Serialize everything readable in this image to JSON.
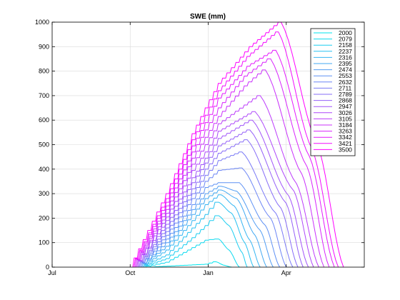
{
  "chart_data": {
    "type": "line",
    "title": "SWE (mm)",
    "xlabel": "",
    "ylabel": "",
    "x_ticks": [
      "Jul",
      "Oct",
      "Jan",
      "Apr"
    ],
    "x_tick_months": [
      0,
      3,
      6,
      9
    ],
    "xlim_months": [
      0,
      12
    ],
    "ylim": [
      0,
      1000
    ],
    "y_ticks": [
      0,
      100,
      200,
      300,
      400,
      500,
      600,
      700,
      800,
      900,
      1000
    ],
    "grid": true,
    "legend_position": "top-right",
    "color_start": "#00e5ee",
    "color_end": "#ff00ff",
    "series": [
      {
        "name": "2000",
        "values": [
          [
            3.75,
            0
          ],
          [
            6.0,
            12
          ],
          [
            6.3,
            22
          ],
          [
            6.6,
            8
          ],
          [
            6.9,
            0
          ]
        ]
      },
      {
        "name": "2079",
        "values": [
          [
            3.6,
            0
          ],
          [
            4.5,
            20
          ],
          [
            5.5,
            80
          ],
          [
            6.0,
            110
          ],
          [
            6.4,
            115
          ],
          [
            6.8,
            70
          ],
          [
            7.2,
            0
          ]
        ]
      },
      {
        "name": "2158",
        "values": [
          [
            3.55,
            0
          ],
          [
            4.5,
            35
          ],
          [
            5.5,
            120
          ],
          [
            6.0,
            170
          ],
          [
            6.4,
            210
          ],
          [
            6.8,
            170
          ],
          [
            7.3,
            60
          ],
          [
            7.5,
            0
          ]
        ]
      },
      {
        "name": "2237",
        "values": [
          [
            3.5,
            0
          ],
          [
            4.5,
            50
          ],
          [
            5.5,
            160
          ],
          [
            6.0,
            215
          ],
          [
            6.4,
            265
          ],
          [
            6.9,
            220
          ],
          [
            7.4,
            100
          ],
          [
            7.75,
            0
          ]
        ]
      },
      {
        "name": "2316",
        "values": [
          [
            3.5,
            0
          ],
          [
            4.5,
            70
          ],
          [
            5.5,
            190
          ],
          [
            6.0,
            255
          ],
          [
            6.5,
            295
          ],
          [
            7.0,
            250
          ],
          [
            7.6,
            110
          ],
          [
            8.0,
            0
          ]
        ]
      },
      {
        "name": "2395",
        "values": [
          [
            3.45,
            0
          ],
          [
            4.5,
            85
          ],
          [
            5.5,
            215
          ],
          [
            6.0,
            280
          ],
          [
            6.5,
            315
          ],
          [
            7.1,
            280
          ],
          [
            7.8,
            130
          ],
          [
            8.25,
            0
          ]
        ]
      },
      {
        "name": "2474",
        "values": [
          [
            3.45,
            0
          ],
          [
            4.5,
            100
          ],
          [
            5.5,
            235
          ],
          [
            6.0,
            300
          ],
          [
            6.5,
            330
          ],
          [
            7.1,
            310
          ],
          [
            8.0,
            150
          ],
          [
            8.5,
            0
          ]
        ]
      },
      {
        "name": "2553",
        "values": [
          [
            3.4,
            0
          ],
          [
            4.5,
            115
          ],
          [
            5.5,
            255
          ],
          [
            6.0,
            325
          ],
          [
            6.5,
            345
          ],
          [
            7.2,
            345
          ],
          [
            8.2,
            170
          ],
          [
            8.75,
            0
          ]
        ]
      },
      {
        "name": "2632",
        "values": [
          [
            3.4,
            0
          ],
          [
            4.5,
            130
          ],
          [
            5.5,
            280
          ],
          [
            6.0,
            350
          ],
          [
            6.5,
            395
          ],
          [
            7.3,
            405
          ],
          [
            8.4,
            200
          ],
          [
            9.0,
            0
          ]
        ]
      },
      {
        "name": "2711",
        "values": [
          [
            3.35,
            0
          ],
          [
            4.5,
            145
          ],
          [
            5.5,
            300
          ],
          [
            6.0,
            375
          ],
          [
            6.5,
            435
          ],
          [
            7.3,
            470
          ],
          [
            8.6,
            220
          ],
          [
            9.25,
            0
          ]
        ]
      },
      {
        "name": "2789",
        "values": [
          [
            3.35,
            0
          ],
          [
            4.5,
            160
          ],
          [
            5.5,
            320
          ],
          [
            6.0,
            400
          ],
          [
            6.5,
            465
          ],
          [
            7.5,
            520
          ],
          [
            8.8,
            240
          ],
          [
            9.45,
            0
          ]
        ]
      },
      {
        "name": "2868",
        "values": [
          [
            3.3,
            0
          ],
          [
            4.5,
            175
          ],
          [
            5.5,
            345
          ],
          [
            6.0,
            425
          ],
          [
            6.5,
            495
          ],
          [
            7.6,
            560
          ],
          [
            9.0,
            260
          ],
          [
            9.65,
            0
          ]
        ]
      },
      {
        "name": "2947",
        "values": [
          [
            3.3,
            0
          ],
          [
            4.5,
            190
          ],
          [
            5.5,
            365
          ],
          [
            6.0,
            445
          ],
          [
            6.5,
            525
          ],
          [
            7.7,
            600
          ],
          [
            9.1,
            290
          ],
          [
            9.85,
            0
          ]
        ]
      },
      {
        "name": "3026",
        "values": [
          [
            3.25,
            0
          ],
          [
            4.5,
            205
          ],
          [
            5.5,
            395
          ],
          [
            6.0,
            470
          ],
          [
            6.5,
            555
          ],
          [
            7.8,
            635
          ],
          [
            9.3,
            310
          ],
          [
            10.05,
            0
          ]
        ]
      },
      {
        "name": "3105",
        "values": [
          [
            3.25,
            0
          ],
          [
            4.5,
            220
          ],
          [
            5.5,
            420
          ],
          [
            6.0,
            500
          ],
          [
            6.5,
            585
          ],
          [
            8.0,
            700
          ],
          [
            9.4,
            340
          ],
          [
            10.25,
            0
          ]
        ]
      },
      {
        "name": "3184",
        "values": [
          [
            3.2,
            0
          ],
          [
            4.5,
            235
          ],
          [
            5.5,
            445
          ],
          [
            6.0,
            530
          ],
          [
            6.5,
            615
          ],
          [
            7.5,
            740
          ],
          [
            8.2,
            805
          ],
          [
            9.6,
            380
          ],
          [
            10.45,
            0
          ]
        ]
      },
      {
        "name": "3263",
        "values": [
          [
            3.2,
            0
          ],
          [
            4.5,
            250
          ],
          [
            5.5,
            470
          ],
          [
            6.0,
            560
          ],
          [
            6.5,
            650
          ],
          [
            7.5,
            780
          ],
          [
            8.4,
            850
          ],
          [
            9.8,
            410
          ],
          [
            10.65,
            0
          ]
        ]
      },
      {
        "name": "3342",
        "values": [
          [
            3.15,
            0
          ],
          [
            4.5,
            265
          ],
          [
            5.5,
            495
          ],
          [
            6.0,
            590
          ],
          [
            6.5,
            690
          ],
          [
            7.6,
            820
          ],
          [
            8.6,
            885
          ],
          [
            9.9,
            450
          ],
          [
            10.85,
            0
          ]
        ]
      },
      {
        "name": "3421",
        "values": [
          [
            3.15,
            0
          ],
          [
            4.5,
            280
          ],
          [
            5.5,
            520
          ],
          [
            6.0,
            620
          ],
          [
            6.5,
            720
          ],
          [
            7.6,
            860
          ],
          [
            8.7,
            960
          ],
          [
            10.0,
            480
          ],
          [
            11.0,
            0
          ]
        ]
      },
      {
        "name": "3500",
        "values": [
          [
            3.1,
            0
          ],
          [
            4.5,
            300
          ],
          [
            5.5,
            545
          ],
          [
            6.0,
            650
          ],
          [
            6.5,
            750
          ],
          [
            7.7,
            900
          ],
          [
            8.8,
            1000
          ],
          [
            10.2,
            500
          ],
          [
            11.2,
            0
          ]
        ]
      }
    ]
  }
}
